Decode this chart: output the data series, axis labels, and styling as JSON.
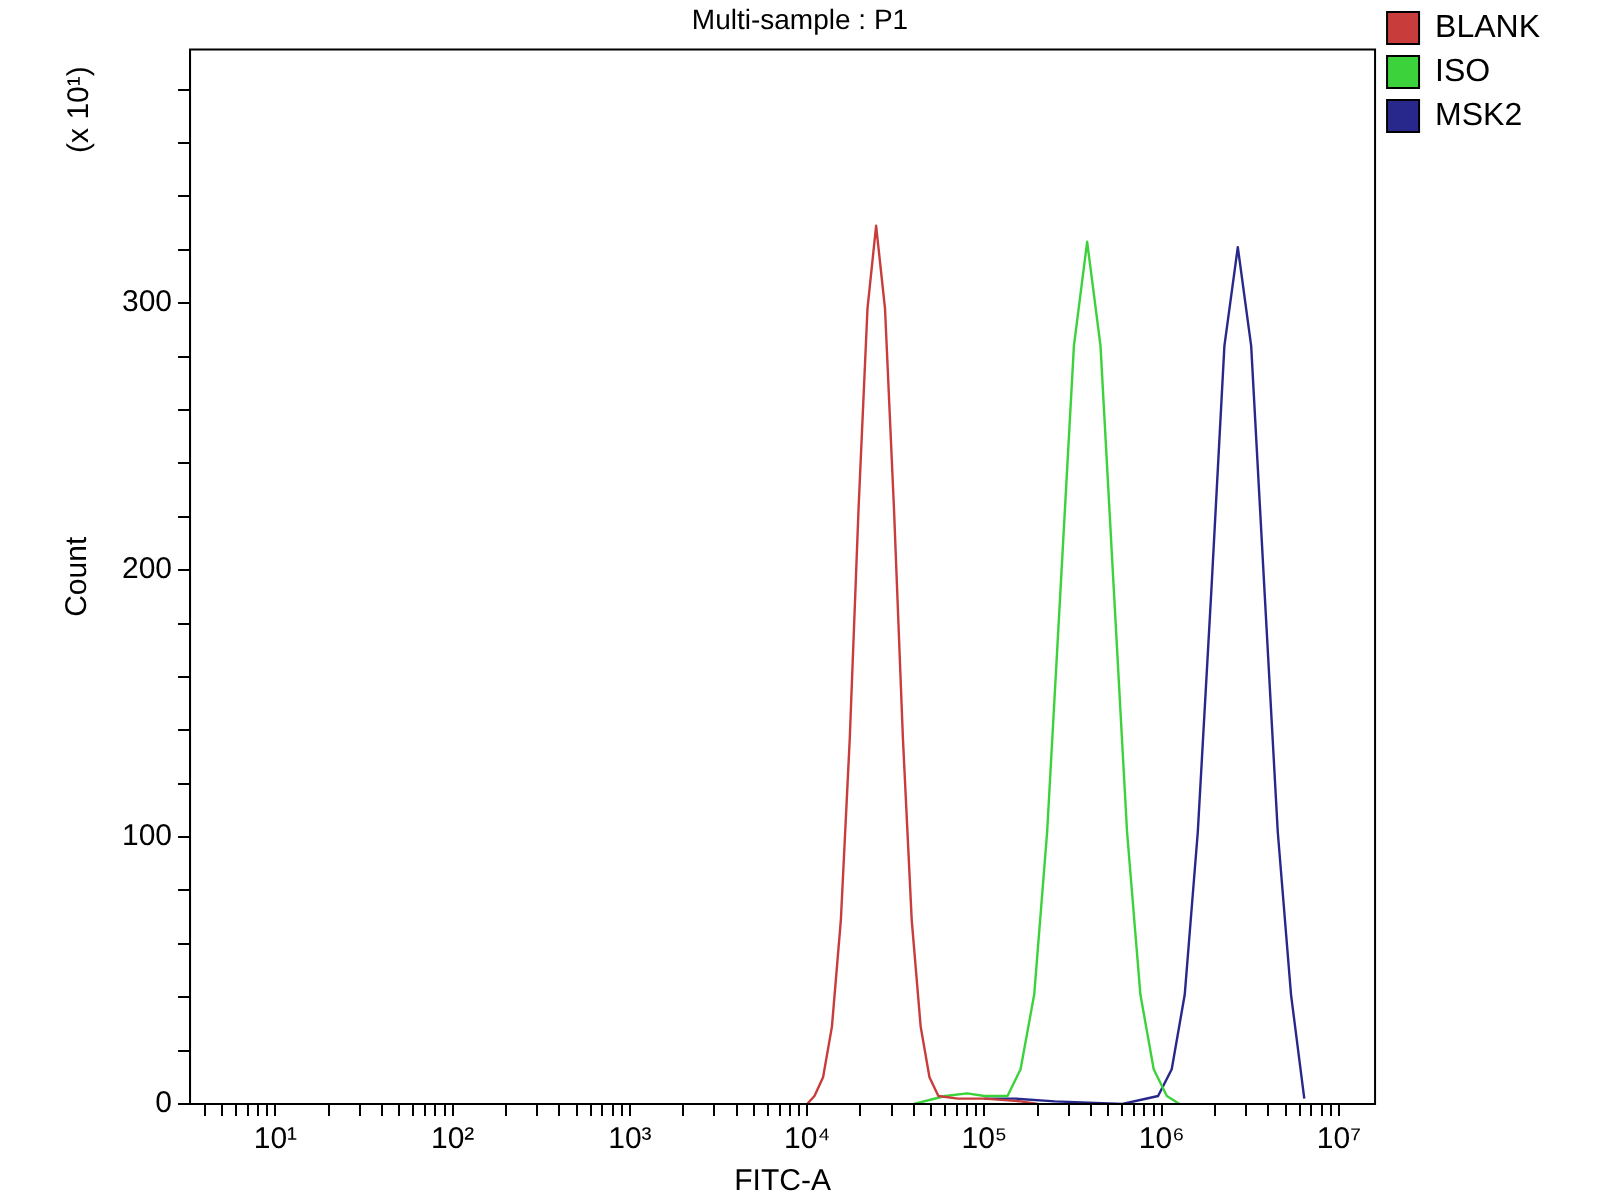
{
  "chart_data": {
    "type": "line",
    "title": "Multi-sample : P1",
    "xlabel": "FITC-A",
    "ylabel": "Count",
    "annotations": [
      "(x 10¹)"
    ],
    "log": "x",
    "grid": false,
    "legend": "top right",
    "marker": "none",
    "xlim": [
      3.3,
      16000000
    ],
    "ylim": [
      0,
      395
    ],
    "xticks": [
      {
        "value": 4,
        "label": null
      },
      {
        "value": 5,
        "label": null
      },
      {
        "value": 6,
        "label": null
      },
      {
        "value": 7,
        "label": null
      },
      {
        "value": 8,
        "label": null
      },
      {
        "value": 9,
        "label": null
      },
      {
        "value": 10,
        "label": "10¹"
      },
      {
        "value": 20,
        "label": null
      },
      {
        "value": 30,
        "label": null
      },
      {
        "value": 40,
        "label": null
      },
      {
        "value": 50,
        "label": null
      },
      {
        "value": 60,
        "label": null
      },
      {
        "value": 70,
        "label": null
      },
      {
        "value": 80,
        "label": null
      },
      {
        "value": 90,
        "label": null
      },
      {
        "value": 100,
        "label": "10²"
      },
      {
        "value": 200,
        "label": null
      },
      {
        "value": 300,
        "label": null
      },
      {
        "value": 400,
        "label": null
      },
      {
        "value": 500,
        "label": null
      },
      {
        "value": 600,
        "label": null
      },
      {
        "value": 700,
        "label": null
      },
      {
        "value": 800,
        "label": null
      },
      {
        "value": 900,
        "label": null
      },
      {
        "value": 1000,
        "label": "10³"
      },
      {
        "value": 2000,
        "label": null
      },
      {
        "value": 3000,
        "label": null
      },
      {
        "value": 4000,
        "label": null
      },
      {
        "value": 5000,
        "label": null
      },
      {
        "value": 6000,
        "label": null
      },
      {
        "value": 7000,
        "label": null
      },
      {
        "value": 8000,
        "label": null
      },
      {
        "value": 9000,
        "label": null
      },
      {
        "value": 10000,
        "label": "10⁴"
      },
      {
        "value": 20000,
        "label": null
      },
      {
        "value": 30000,
        "label": null
      },
      {
        "value": 40000,
        "label": null
      },
      {
        "value": 50000,
        "label": null
      },
      {
        "value": 60000,
        "label": null
      },
      {
        "value": 70000,
        "label": null
      },
      {
        "value": 80000,
        "label": null
      },
      {
        "value": 90000,
        "label": null
      },
      {
        "value": 100000,
        "label": "10⁵"
      },
      {
        "value": 200000,
        "label": null
      },
      {
        "value": 300000,
        "label": null
      },
      {
        "value": 400000,
        "label": null
      },
      {
        "value": 500000,
        "label": null
      },
      {
        "value": 600000,
        "label": null
      },
      {
        "value": 700000,
        "label": null
      },
      {
        "value": 800000,
        "label": null
      },
      {
        "value": 900000,
        "label": null
      },
      {
        "value": 1000000,
        "label": "10⁶"
      },
      {
        "value": 2000000,
        "label": null
      },
      {
        "value": 3000000,
        "label": null
      },
      {
        "value": 4000000,
        "label": null
      },
      {
        "value": 5000000,
        "label": null
      },
      {
        "value": 6000000,
        "label": null
      },
      {
        "value": 7000000,
        "label": null
      },
      {
        "value": 8000000,
        "label": null
      },
      {
        "value": 9000000,
        "label": null
      },
      {
        "value": 10000000,
        "label": "10⁷"
      }
    ],
    "yticks": [
      0,
      {
        "value": 20,
        "label": null
      },
      {
        "value": 40,
        "label": null
      },
      {
        "value": 60,
        "label": null
      },
      {
        "value": 80,
        "label": null
      },
      100,
      {
        "value": 120,
        "label": null
      },
      {
        "value": 140,
        "label": null
      },
      {
        "value": 160,
        "label": null
      },
      {
        "value": 180,
        "label": null
      },
      200,
      {
        "value": 220,
        "label": null
      },
      {
        "value": 240,
        "label": null
      },
      {
        "value": 260,
        "label": null
      },
      {
        "value": 280,
        "label": null
      },
      300,
      {
        "value": 320,
        "label": null
      },
      {
        "value": 340,
        "label": null
      },
      {
        "value": 360,
        "label": null
      },
      {
        "value": 380,
        "label": null
      }
    ],
    "series": [
      {
        "name": "BLANK",
        "color": "#c83c3c",
        "x": [
          10000,
          11000,
          12300,
          13800,
          15500,
          17400,
          19500,
          21900,
          24500,
          27500,
          30900,
          34700,
          38900,
          43700,
          49000,
          55000,
          71000,
          100000,
          160000,
          200000
        ],
        "values": [
          0,
          3,
          10,
          29,
          69,
          137,
          223,
          298,
          329,
          298,
          223,
          137,
          69,
          29,
          10,
          3,
          2,
          2,
          1,
          0
        ]
      },
      {
        "name": "ISO",
        "color": "#3cd23c",
        "x": [
          40000,
          60000,
          80000,
          100000,
          135000,
          160000,
          191000,
          226000,
          269000,
          320000,
          380000,
          452000,
          537000,
          638000,
          759000,
          902000,
          1070000,
          1260000
        ],
        "values": [
          0,
          3,
          4,
          3,
          3,
          13,
          41,
          102,
          193,
          284,
          323,
          284,
          193,
          102,
          41,
          13,
          3,
          0
        ]
      },
      {
        "name": "MSK2",
        "color": "#28288c",
        "x": [
          100000,
          150000,
          250000,
          600000,
          955000,
          1140000,
          1350000,
          1600000,
          1910000,
          2260000,
          2690000,
          3200000,
          3800000,
          4520000,
          5370000,
          6380000
        ],
        "values": [
          2,
          2,
          1,
          0,
          3,
          13,
          41,
          102,
          193,
          284,
          321,
          284,
          193,
          102,
          41,
          2
        ]
      }
    ]
  }
}
